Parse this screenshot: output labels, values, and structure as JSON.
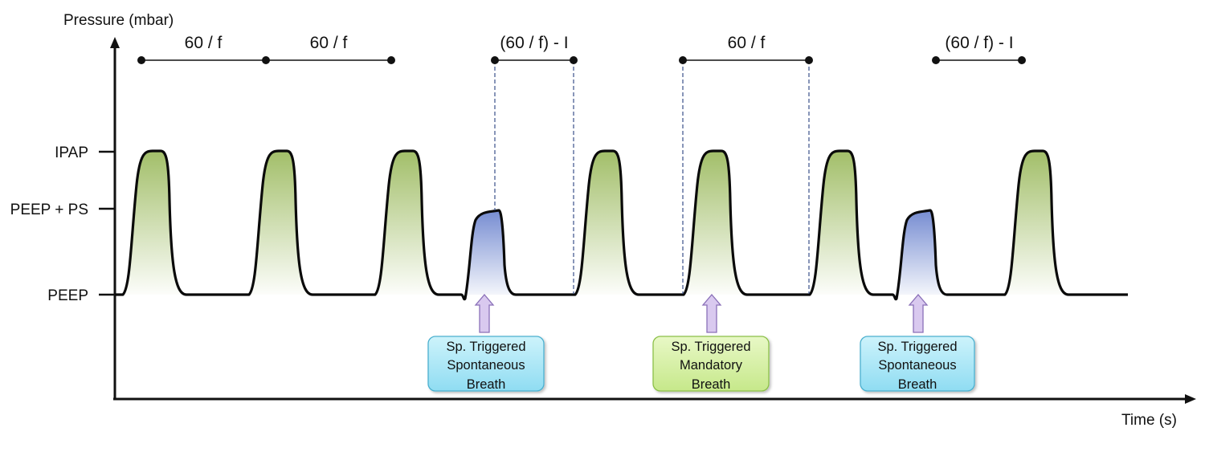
{
  "axes": {
    "y_title": "Pressure (mbar)",
    "x_title": "Time (s)",
    "levels": [
      {
        "key": "ipap",
        "label": "IPAP"
      },
      {
        "key": "peep_ps",
        "label": "PEEP + PS"
      },
      {
        "key": "peep",
        "label": "PEEP"
      }
    ]
  },
  "intervals": [
    {
      "label": "60 / f"
    },
    {
      "label": "60 / f"
    },
    {
      "label": "(60 / f) - I"
    },
    {
      "label": "60 / f"
    },
    {
      "label": "(60 / f) - I"
    }
  ],
  "breaths": [
    {
      "kind": "mandatory",
      "level": "IPAP"
    },
    {
      "kind": "mandatory",
      "level": "IPAP"
    },
    {
      "kind": "mandatory",
      "level": "IPAP"
    },
    {
      "kind": "spontaneous",
      "level": "PEEP + PS"
    },
    {
      "kind": "mandatory",
      "level": "IPAP"
    },
    {
      "kind": "mandatory",
      "level": "IPAP"
    },
    {
      "kind": "mandatory",
      "level": "IPAP"
    },
    {
      "kind": "spontaneous",
      "level": "PEEP + PS"
    },
    {
      "kind": "mandatory",
      "level": "IPAP"
    }
  ],
  "callouts": [
    {
      "lines": [
        "Sp. Triggered",
        "Spontaneous",
        "Breath"
      ],
      "style": "spontaneous"
    },
    {
      "lines": [
        "Sp. Triggered",
        "Mandatory",
        "Breath"
      ],
      "style": "mandatory"
    },
    {
      "lines": [
        "Sp. Triggered",
        "Spontaneous",
        "Breath"
      ],
      "style": "spontaneous"
    }
  ],
  "colors": {
    "mandatory_fill": "#9dbb61",
    "spontaneous_fill": "#6f86cf",
    "arrow_fill": "#d9c9ef",
    "arrow_stroke": "#8a70b8",
    "callout_spont_fill": "#a6e6f6",
    "callout_spont_stroke": "#4bb0cf",
    "callout_mand_fill": "#d4ef9c",
    "callout_mand_stroke": "#8cc04a",
    "guide_line": "#3a4f8a"
  }
}
